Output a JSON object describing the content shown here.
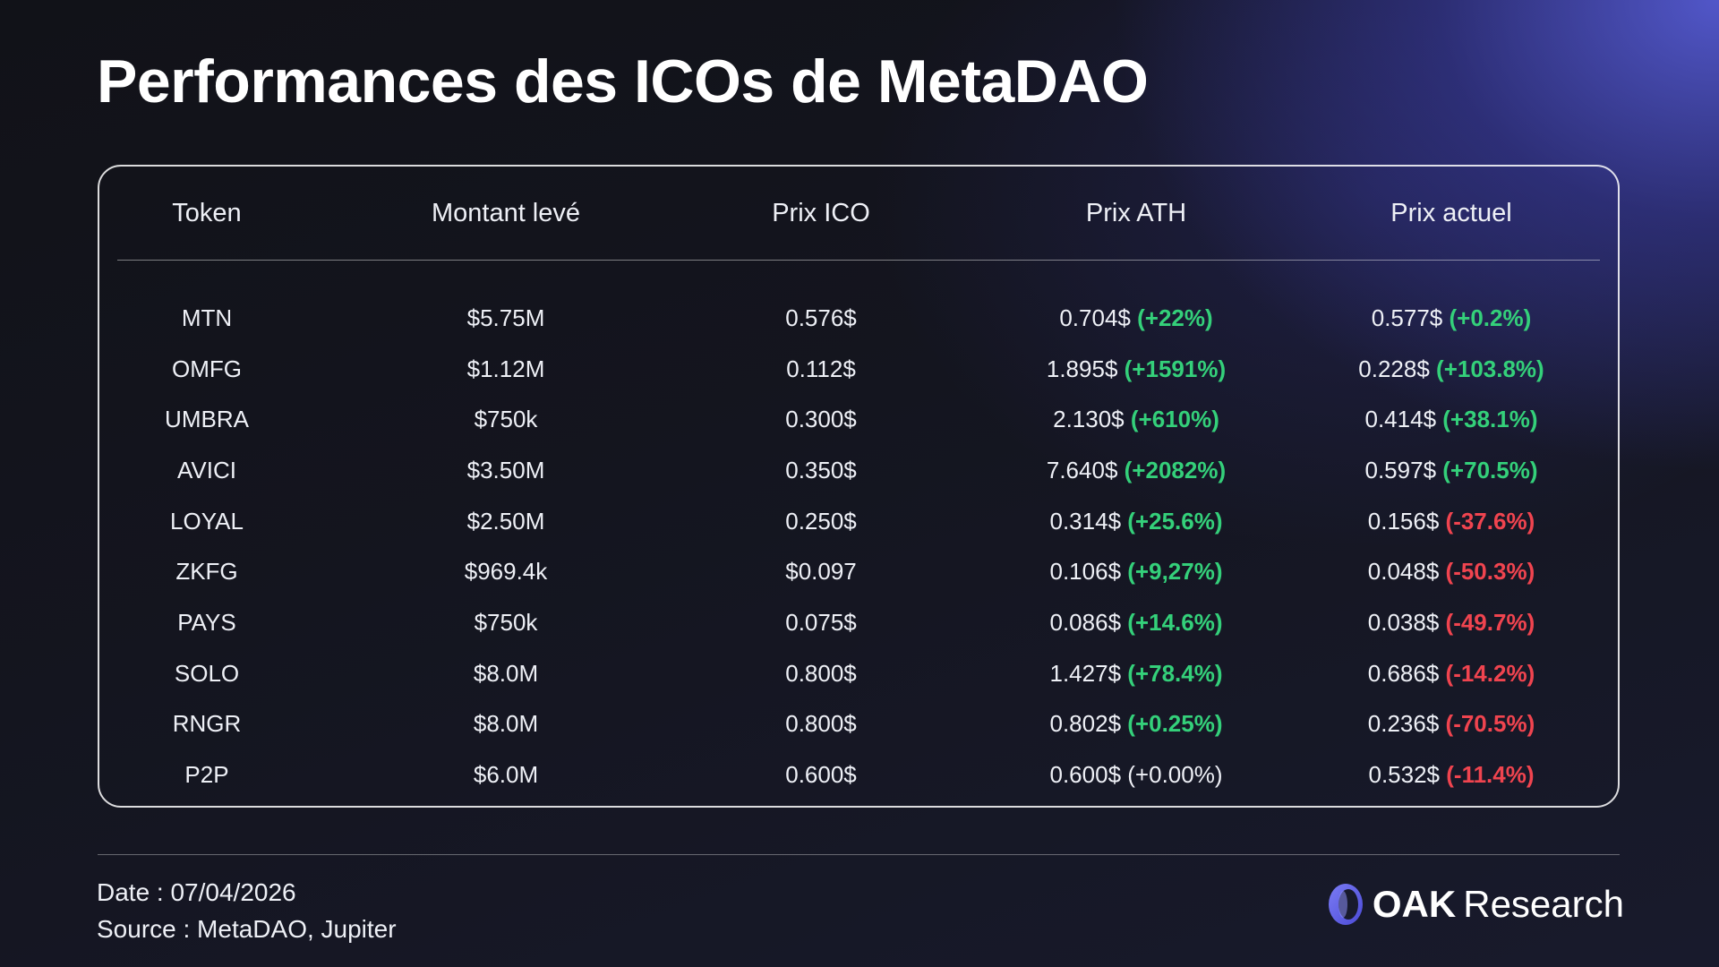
{
  "title": "Performances des ICOs de MetaDAO",
  "table": {
    "headers": [
      "Token",
      "Montant levé",
      "Prix ICO",
      "Prix ATH",
      "Prix actuel"
    ],
    "rows": [
      {
        "token": "MTN",
        "raised": "$5.75M",
        "ico": "0.576$",
        "ath": "0.704$",
        "ath_pct": "(+22%)",
        "ath_tone": "pos",
        "current": "0.577$",
        "current_pct": "(+0.2%)",
        "current_tone": "pos"
      },
      {
        "token": "OMFG",
        "raised": "$1.12M",
        "ico": "0.112$",
        "ath": "1.895$",
        "ath_pct": "(+1591%)",
        "ath_tone": "pos",
        "current": "0.228$",
        "current_pct": "(+103.8%)",
        "current_tone": "pos"
      },
      {
        "token": "UMBRA",
        "raised": "$750k",
        "ico": "0.300$",
        "ath": "2.130$",
        "ath_pct": "(+610%)",
        "ath_tone": "pos",
        "current": "0.414$",
        "current_pct": "(+38.1%)",
        "current_tone": "pos"
      },
      {
        "token": "AVICI",
        "raised": "$3.50M",
        "ico": "0.350$",
        "ath": "7.640$",
        "ath_pct": "(+2082%)",
        "ath_tone": "pos",
        "current": "0.597$",
        "current_pct": "(+70.5%)",
        "current_tone": "pos"
      },
      {
        "token": "LOYAL",
        "raised": "$2.50M",
        "ico": "0.250$",
        "ath": "0.314$",
        "ath_pct": "(+25.6%)",
        "ath_tone": "pos",
        "current": "0.156$",
        "current_pct": "(-37.6%)",
        "current_tone": "neg"
      },
      {
        "token": "ZKFG",
        "raised": "$969.4k",
        "ico": "$0.097",
        "ath": "0.106$",
        "ath_pct": "(+9,27%)",
        "ath_tone": "pos",
        "current": "0.048$",
        "current_pct": "(-50.3%)",
        "current_tone": "neg"
      },
      {
        "token": "PAYS",
        "raised": "$750k",
        "ico": "0.075$",
        "ath": "0.086$",
        "ath_pct": "(+14.6%)",
        "ath_tone": "pos",
        "current": "0.038$",
        "current_pct": "(-49.7%)",
        "current_tone": "neg"
      },
      {
        "token": "SOLO",
        "raised": "$8.0M",
        "ico": "0.800$",
        "ath": "1.427$",
        "ath_pct": "(+78.4%)",
        "ath_tone": "pos",
        "current": "0.686$",
        "current_pct": "(-14.2%)",
        "current_tone": "neg"
      },
      {
        "token": "RNGR",
        "raised": "$8.0M",
        "ico": "0.800$",
        "ath": "0.802$",
        "ath_pct": "(+0.25%)",
        "ath_tone": "pos",
        "current": "0.236$",
        "current_pct": "(-70.5%)",
        "current_tone": "neg"
      },
      {
        "token": "P2P",
        "raised": "$6.0M",
        "ico": "0.600$",
        "ath": "0.600$",
        "ath_pct": "(+0.00%)",
        "ath_tone": "neutral",
        "current": "0.532$",
        "current_pct": "(-11.4%)",
        "current_tone": "neg"
      }
    ]
  },
  "footer": {
    "date": "Date : 07/04/2026",
    "source": "Source : MetaDAO, Jupiter"
  },
  "brand": {
    "name_strong": "OAK",
    "name_light": "Research",
    "icon": "oak-logo-icon"
  },
  "colors": {
    "positive": "#34d07a",
    "negative": "#f0444f",
    "accent": "#5b5ce8"
  }
}
